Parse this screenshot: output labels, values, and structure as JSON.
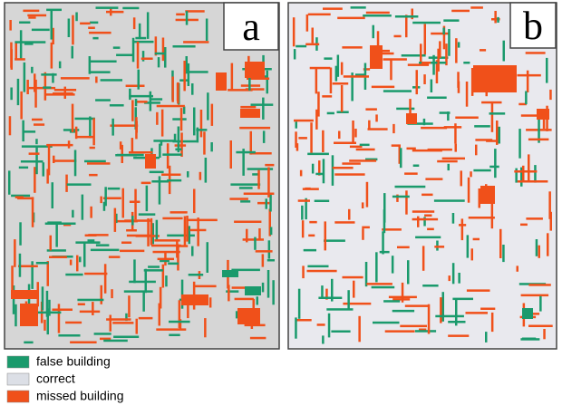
{
  "panels": [
    {
      "label": "a"
    },
    {
      "label": "b"
    }
  ],
  "legend": [
    {
      "label": "false building",
      "color": "#1a9a6c"
    },
    {
      "label": "correct",
      "color": "#dcdfe6"
    },
    {
      "label": "missed building",
      "color": "#f0501a"
    }
  ]
}
